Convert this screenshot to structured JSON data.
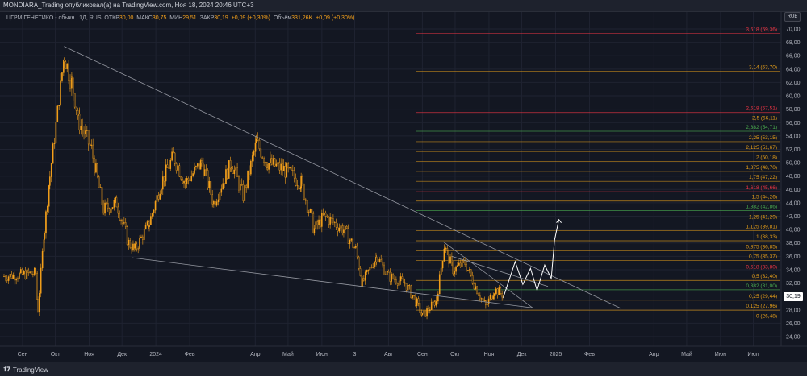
{
  "publisher_line": "MONDIARA_Trading опубликовал(а) на TradingView.com, Ноя 18, 2024 20:46 UTC+3",
  "legend": {
    "symbol": "ЦГРМ ГЕНЕТИКО - обыкн., 1Д, RUS",
    "open_label": "ОТКР",
    "open": "30,00",
    "high_label": "МАКС",
    "high": "30,75",
    "low_label": "МИН",
    "low": "29,51",
    "close_label": "ЗАКР",
    "close": "30,19",
    "change": "+0,09 (+0,30%)",
    "volume_label": "Объём",
    "volume": "331,26K",
    "volume_change": "+0,09 (+0,30%)"
  },
  "currency": "RUB",
  "current_price_label": "30,19",
  "footer_logo": "TradingView",
  "colors": {
    "up": "#f7a21b",
    "down": "#f7a21b",
    "fib_orange": "#e8a019",
    "fib_red": "#f23645",
    "fib_green": "#4caf50",
    "trendline": "#9598a1",
    "projection": "#ffffff"
  },
  "chart_data": {
    "type": "candlestick",
    "title": "ЦГРМ ГЕНЕТИКО - обыкн., 1Д",
    "ylim": [
      24,
      70
    ],
    "y_ticks": [
      "70,00",
      "68,00",
      "66,00",
      "64,00",
      "62,00",
      "60,00",
      "58,00",
      "56,00",
      "54,00",
      "52,00",
      "50,00",
      "48,00",
      "46,00",
      "44,00",
      "42,00",
      "40,00",
      "38,00",
      "36,00",
      "34,00",
      "32,00",
      "28,00",
      "26,00",
      "24,00"
    ],
    "x_ticks": [
      {
        "label": "Сен",
        "date": "2023-09-01"
      },
      {
        "label": "Окт",
        "date": "2023-10-01"
      },
      {
        "label": "Ноя",
        "date": "2023-11-01"
      },
      {
        "label": "Дек",
        "date": "2023-12-01"
      },
      {
        "label": "2024",
        "date": "2024-01-01"
      },
      {
        "label": "Фев",
        "date": "2024-02-01"
      },
      {
        "label": "Апр",
        "date": "2024-04-01"
      },
      {
        "label": "Май",
        "date": "2024-05-01"
      },
      {
        "label": "Июн",
        "date": "2024-06-01"
      },
      {
        "label": "3",
        "date": "2024-07-01"
      },
      {
        "label": "Авг",
        "date": "2024-08-01"
      },
      {
        "label": "Сен",
        "date": "2024-09-01"
      },
      {
        "label": "Окт",
        "date": "2024-10-01"
      },
      {
        "label": "Ноя",
        "date": "2024-11-01"
      },
      {
        "label": "Дек",
        "date": "2024-12-01"
      },
      {
        "label": "2025",
        "date": "2025-01-01"
      },
      {
        "label": "Фев",
        "date": "2025-02-01"
      },
      {
        "label": "Апр",
        "date": "2025-04-01"
      },
      {
        "label": "Май",
        "date": "2025-05-01"
      },
      {
        "label": "Июн",
        "date": "2025-06-01"
      },
      {
        "label": "Июл",
        "date": "2025-07-01"
      }
    ],
    "price_anchors": [
      [
        "2023-08-15",
        33
      ],
      [
        "2023-09-13",
        33.5
      ],
      [
        "2023-09-15",
        28
      ],
      [
        "2023-09-21",
        40
      ],
      [
        "2023-09-26",
        48
      ],
      [
        "2023-10-09",
        66
      ],
      [
        "2023-10-16",
        62
      ],
      [
        "2023-10-23",
        56
      ],
      [
        "2023-11-03",
        52
      ],
      [
        "2023-11-14",
        43
      ],
      [
        "2023-11-26",
        44
      ],
      [
        "2023-12-07",
        38
      ],
      [
        "2023-12-13",
        37
      ],
      [
        "2023-12-26",
        41
      ],
      [
        "2024-01-06",
        47
      ],
      [
        "2024-01-17",
        51
      ],
      [
        "2024-01-28",
        47
      ],
      [
        "2024-02-12",
        50
      ],
      [
        "2024-02-23",
        44
      ],
      [
        "2024-03-10",
        50
      ],
      [
        "2024-03-21",
        45
      ],
      [
        "2024-04-02",
        53
      ],
      [
        "2024-04-12",
        50
      ],
      [
        "2024-04-27",
        49
      ],
      [
        "2024-05-13",
        47
      ],
      [
        "2024-05-25",
        40
      ],
      [
        "2024-06-03",
        42
      ],
      [
        "2024-06-21",
        40
      ],
      [
        "2024-07-02",
        37
      ],
      [
        "2024-07-08",
        32
      ],
      [
        "2024-07-21",
        36
      ],
      [
        "2024-08-01",
        33
      ],
      [
        "2024-08-16",
        32
      ],
      [
        "2024-08-27",
        29
      ],
      [
        "2024-09-01",
        27
      ],
      [
        "2024-09-14",
        29.5
      ],
      [
        "2024-09-21",
        37.5
      ],
      [
        "2024-09-29",
        34
      ],
      [
        "2024-10-10",
        35
      ],
      [
        "2024-10-21",
        31
      ],
      [
        "2024-10-29",
        28.5
      ],
      [
        "2024-11-06",
        31
      ],
      [
        "2024-11-15",
        30.19
      ]
    ],
    "fib_levels": [
      {
        "label": "3,618 (69,36)",
        "price": 69.36,
        "kind": "red"
      },
      {
        "label": "3,14 (63,70)",
        "price": 63.7,
        "kind": "orange"
      },
      {
        "label": "2,618 (57,51)",
        "price": 57.51,
        "kind": "red"
      },
      {
        "label": "2,5 (56,11)",
        "price": 56.11,
        "kind": "orange"
      },
      {
        "label": "2,382 (54,71)",
        "price": 54.71,
        "kind": "green"
      },
      {
        "label": "2,25 (53,15)",
        "price": 53.15,
        "kind": "orange"
      },
      {
        "label": "2,125 (51,67)",
        "price": 51.67,
        "kind": "orange"
      },
      {
        "label": "2 (50,18)",
        "price": 50.18,
        "kind": "orange"
      },
      {
        "label": "1,875 (48,70)",
        "price": 48.7,
        "kind": "orange"
      },
      {
        "label": "1,75 (47,22)",
        "price": 47.22,
        "kind": "orange"
      },
      {
        "label": "1,618 (45,66)",
        "price": 45.66,
        "kind": "red"
      },
      {
        "label": "1,5 (44,26)",
        "price": 44.26,
        "kind": "orange"
      },
      {
        "label": "1,382 (42,86)",
        "price": 42.86,
        "kind": "green"
      },
      {
        "label": "1,25 (41,29)",
        "price": 41.29,
        "kind": "orange"
      },
      {
        "label": "1,125 (39,81)",
        "price": 39.81,
        "kind": "orange"
      },
      {
        "label": "1 (38,33)",
        "price": 38.33,
        "kind": "orange"
      },
      {
        "label": "0,875 (36,85)",
        "price": 36.85,
        "kind": "orange"
      },
      {
        "label": "0,75 (35,37)",
        "price": 35.37,
        "kind": "orange"
      },
      {
        "label": "0,618 (33,80)",
        "price": 33.8,
        "kind": "red"
      },
      {
        "label": "0,5 (32,40)",
        "price": 32.4,
        "kind": "orange"
      },
      {
        "label": "0,382 (31,00)",
        "price": 31.0,
        "kind": "green"
      },
      {
        "label": "0,25 (29,44)",
        "price": 29.44,
        "kind": "orange"
      },
      {
        "label": "0,125 (27,96)",
        "price": 27.96,
        "kind": "orange"
      },
      {
        "label": "0 (26,48)",
        "price": 26.48,
        "kind": "orange"
      }
    ],
    "trendlines": [
      [
        [
          "2023-10-09",
          67.4
        ],
        [
          "2025-03-02",
          28.2
        ]
      ],
      [
        [
          "2023-12-10",
          35.8
        ],
        [
          "2024-12-11",
          28.3
        ]
      ],
      [
        [
          "2024-09-20",
          38.2
        ],
        [
          "2024-12-11",
          28.3
        ]
      ],
      [
        [
          "2024-09-28",
          36.0
        ],
        [
          "2024-12-25",
          31.5
        ]
      ]
    ],
    "projection": [
      [
        "2024-11-14",
        29.8
      ],
      [
        "2024-11-25",
        35.2
      ],
      [
        "2024-12-02",
        31.8
      ],
      [
        "2024-12-09",
        34.2
      ],
      [
        "2024-12-15",
        30.9
      ],
      [
        "2024-12-22",
        34.7
      ],
      [
        "2024-12-28",
        32.7
      ],
      [
        "2024-12-31",
        38.4
      ],
      [
        "2025-01-04",
        41.5
      ]
    ]
  }
}
